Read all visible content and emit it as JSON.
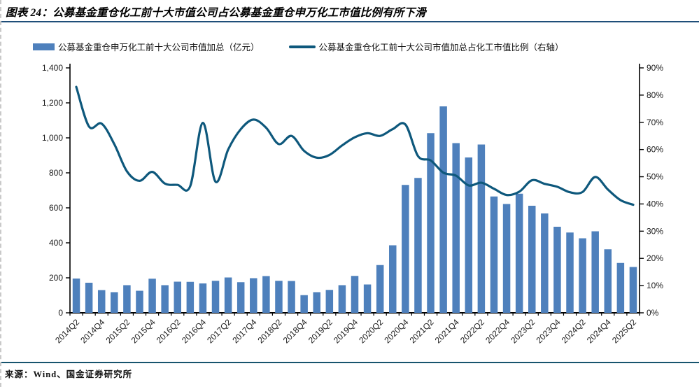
{
  "title": "图表 24：公募基金重仓化工前十大市值公司占公募基金重仓申万化工市值比例有所下滑",
  "source": "来源：Wind、国金证券研究所",
  "colors": {
    "bar": "#4E80BC",
    "line": "#0E587C",
    "title_rule": "#1F4E79",
    "source_rule": "#17546E",
    "axis": "#000000",
    "tick_text": "#1a1a1a"
  },
  "chart_data": {
    "type": "bar+line",
    "title": "公募基金重仓化工前十大市值公司占公募基金重仓申万化工市值比例",
    "categories": [
      "2014Q2",
      "2014Q3",
      "2014Q4",
      "2015Q1",
      "2015Q2",
      "2015Q3",
      "2015Q4",
      "2016Q1",
      "2016Q2",
      "2016Q3",
      "2016Q4",
      "2017Q1",
      "2017Q2",
      "2017Q3",
      "2017Q4",
      "2018Q1",
      "2018Q2",
      "2018Q3",
      "2018Q4",
      "2019Q1",
      "2019Q2",
      "2019Q3",
      "2019Q4",
      "2020Q1",
      "2020Q2",
      "2020Q3",
      "2020Q4",
      "2021Q1",
      "2021Q2",
      "2021Q3",
      "2021Q4",
      "2022Q1",
      "2022Q2",
      "2022Q3",
      "2022Q4",
      "2023Q1",
      "2023Q2",
      "2023Q3",
      "2023Q4",
      "2024Q1",
      "2024Q2",
      "2024Q3",
      "2024Q4",
      "2025Q1",
      "2025Q2"
    ],
    "x_label_every": 2,
    "x_tick_labels": [
      "2014Q2",
      "2014Q4",
      "2015Q2",
      "2015Q4",
      "2016Q2",
      "2016Q4",
      "2017Q2",
      "2017Q4",
      "2018Q2",
      "2018Q4",
      "2019Q2",
      "2019Q4",
      "2020Q2",
      "2020Q4",
      "2021Q2",
      "2021Q4",
      "2022Q2",
      "2022Q4",
      "2023Q2",
      "2023Q4",
      "2024Q2",
      "2024Q4",
      "2025Q2"
    ],
    "series": [
      {
        "name": "公募基金重仓申万化工前十大公司市值加总（亿元）",
        "type": "bar",
        "axis": "left",
        "color": "#4E80BC",
        "values": [
          196,
          172,
          130,
          118,
          158,
          126,
          195,
          158,
          178,
          177,
          168,
          183,
          202,
          175,
          198,
          210,
          183,
          182,
          101,
          118,
          131,
          158,
          211,
          162,
          273,
          386,
          731,
          771,
          1027,
          1180,
          970,
          888,
          962,
          665,
          622,
          681,
          612,
          568,
          492,
          459,
          426,
          466,
          363,
          285,
          262
        ]
      },
      {
        "name": "公募基金重仓化工前十大公司市值加总占化工市值比例（右轴）",
        "type": "line",
        "axis": "right",
        "color": "#0E587C",
        "values": [
          83,
          68.5,
          69.5,
          62,
          52,
          48.5,
          51.8,
          47.5,
          47,
          46.5,
          69.8,
          48.2,
          60,
          67.5,
          71,
          68,
          62,
          65,
          59.5,
          57,
          58,
          61.5,
          64.5,
          66,
          65,
          67.5,
          69.2,
          57.6,
          56,
          51.5,
          50.4,
          46.8,
          47.8,
          45.6,
          43.3,
          44.5,
          48.7,
          47.4,
          46.3,
          44.3,
          44.4,
          49.9,
          45.3,
          41.4,
          39.7
        ]
      }
    ],
    "left_axis": {
      "min": 0,
      "max": 1400,
      "step": 200,
      "tick_labels": [
        "0",
        "200",
        "400",
        "600",
        "800",
        "1,000",
        "1,200",
        "1,400"
      ]
    },
    "right_axis": {
      "min": 0,
      "max": 90,
      "step": 10,
      "tick_labels": [
        "0%",
        "10%",
        "20%",
        "30%",
        "40%",
        "50%",
        "60%",
        "70%",
        "80%",
        "90%"
      ]
    },
    "grid": false,
    "legend_position": "top"
  }
}
